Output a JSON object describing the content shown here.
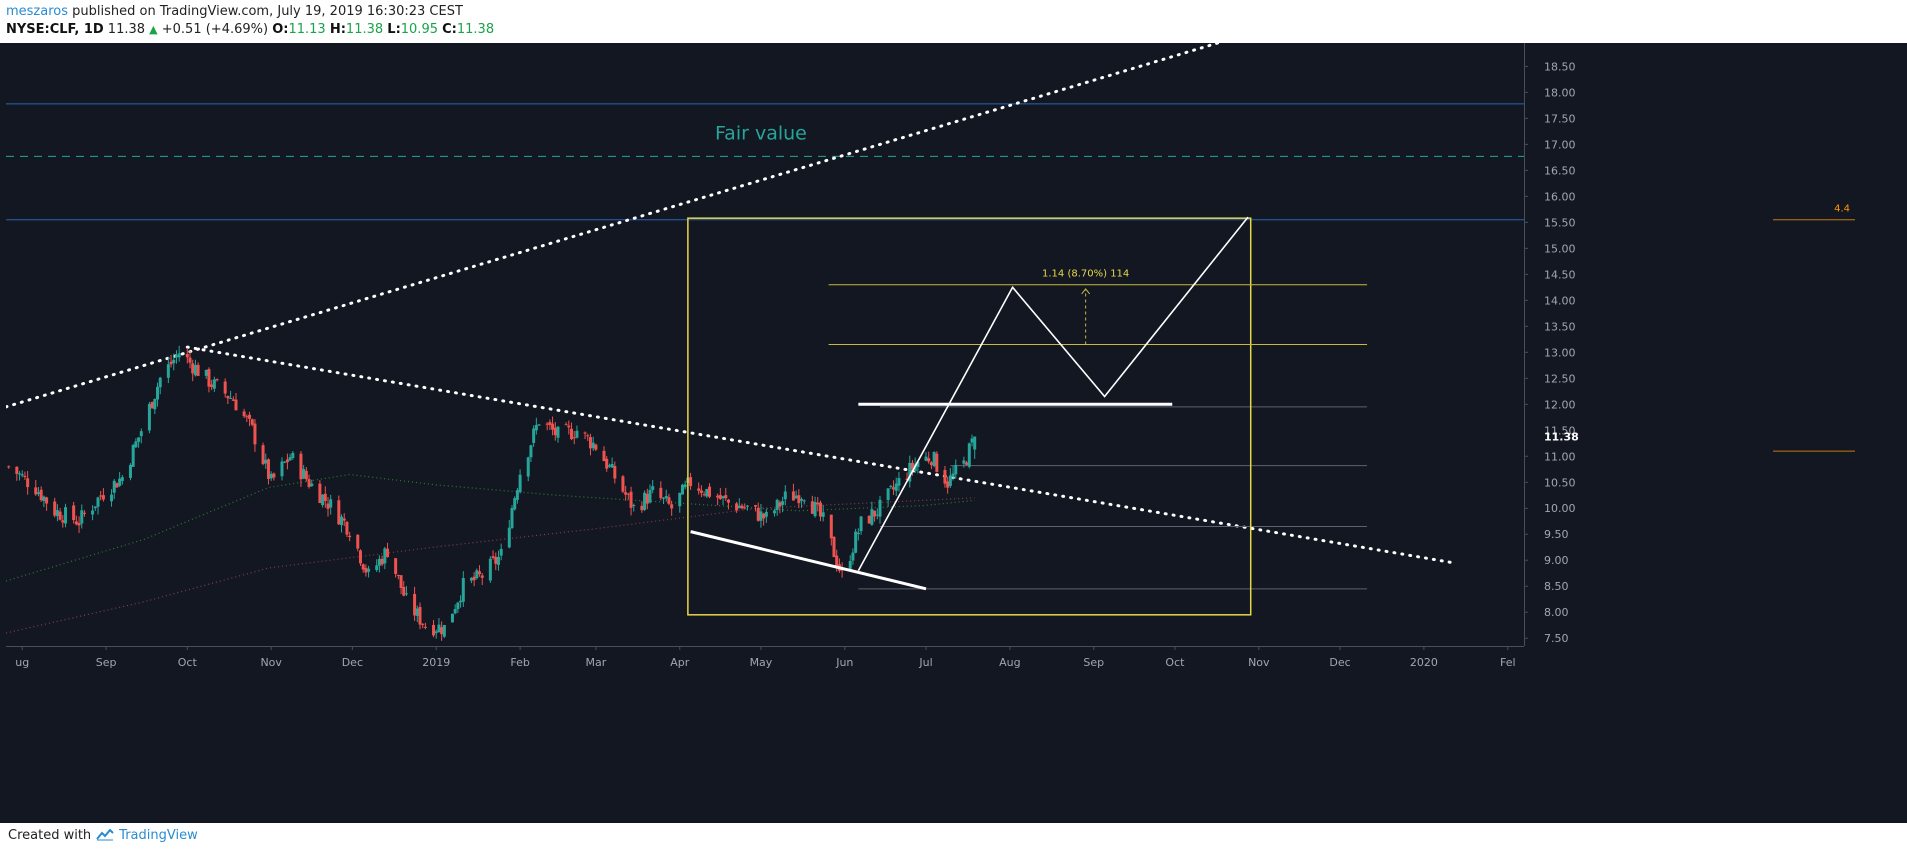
{
  "header": {
    "publisher": "meszaros",
    "published_text": "published on TradingView.com, July 19, 2019 16:30:23 CEST",
    "symbol": "NYSE:CLF, 1D",
    "last": "11.38",
    "change": "+0.51 (+4.69%)",
    "o_label": "O:",
    "o_value": "11.13",
    "h_label": "H:",
    "h_value": "11.38",
    "l_label": "L:",
    "l_value": "10.95",
    "c_label": "C:",
    "c_value": "11.38"
  },
  "footer": {
    "created": "Created with",
    "brand": "TradingView"
  },
  "colors": {
    "background": "#131722",
    "up": "#26a69a",
    "down": "#ef5350",
    "fair_value": "#26a69a",
    "box": "#e8d64a",
    "blue_line": "#2962ff",
    "accent_orange": "#ff9800"
  },
  "chart_data": {
    "type": "candlestick",
    "symbol": "NYSE:CLF",
    "interval": "1D",
    "title": "",
    "xlabel": "",
    "ylabel": "",
    "ylim": [
      7.35,
      18.95
    ],
    "x_range": [
      "2018-07-26",
      "2020-02-07"
    ],
    "x_ticks": [
      {
        "date": "2018-08-01",
        "label": "ug"
      },
      {
        "date": "2018-09-01",
        "label": "Sep"
      },
      {
        "date": "2018-10-01",
        "label": "Oct"
      },
      {
        "date": "2018-11-01",
        "label": "Nov"
      },
      {
        "date": "2018-12-01",
        "label": "Dec"
      },
      {
        "date": "2019-01-01",
        "label": "2019"
      },
      {
        "date": "2019-02-01",
        "label": "Feb"
      },
      {
        "date": "2019-03-01",
        "label": "Mar"
      },
      {
        "date": "2019-04-01",
        "label": "Apr"
      },
      {
        "date": "2019-05-01",
        "label": "May"
      },
      {
        "date": "2019-06-01",
        "label": "Jun"
      },
      {
        "date": "2019-07-01",
        "label": "Jul"
      },
      {
        "date": "2019-08-01",
        "label": "Aug"
      },
      {
        "date": "2019-09-01",
        "label": "Sep"
      },
      {
        "date": "2019-10-01",
        "label": "Oct"
      },
      {
        "date": "2019-11-01",
        "label": "Nov"
      },
      {
        "date": "2019-12-01",
        "label": "Dec"
      },
      {
        "date": "2020-01-01",
        "label": "2020"
      },
      {
        "date": "2020-02-01",
        "label": "Fel"
      }
    ],
    "y_ticks": [
      "7.50",
      "8.00",
      "8.50",
      "9.00",
      "9.50",
      "10.00",
      "10.50",
      "11.00",
      "11.50",
      "12.00",
      "12.50",
      "13.00",
      "13.50",
      "14.00",
      "14.50",
      "15.00",
      "15.50",
      "16.00",
      "16.50",
      "17.00",
      "17.50",
      "18.00",
      "18.50"
    ],
    "last_price_label": "11.38",
    "close_path": [
      {
        "date": "2018-07-27",
        "value": 10.8
      },
      {
        "date": "2018-08-06",
        "value": 10.4
      },
      {
        "date": "2018-08-13",
        "value": 9.95
      },
      {
        "date": "2018-08-22",
        "value": 9.75
      },
      {
        "date": "2018-08-31",
        "value": 10.3
      },
      {
        "date": "2018-09-07",
        "value": 10.6
      },
      {
        "date": "2018-09-14",
        "value": 11.5
      },
      {
        "date": "2018-09-21",
        "value": 12.5
      },
      {
        "date": "2018-09-28",
        "value": 13.0
      },
      {
        "date": "2018-10-03",
        "value": 12.75
      },
      {
        "date": "2018-10-10",
        "value": 12.4
      },
      {
        "date": "2018-10-18",
        "value": 12.1
      },
      {
        "date": "2018-10-25",
        "value": 11.5
      },
      {
        "date": "2018-11-01",
        "value": 10.5
      },
      {
        "date": "2018-11-08",
        "value": 11.0
      },
      {
        "date": "2018-11-15",
        "value": 10.5
      },
      {
        "date": "2018-11-23",
        "value": 10.05
      },
      {
        "date": "2018-11-30",
        "value": 9.6
      },
      {
        "date": "2018-12-07",
        "value": 8.7
      },
      {
        "date": "2018-12-14",
        "value": 9.2
      },
      {
        "date": "2018-12-21",
        "value": 8.2
      },
      {
        "date": "2018-12-28",
        "value": 7.75
      },
      {
        "date": "2019-01-04",
        "value": 7.7
      },
      {
        "date": "2019-01-11",
        "value": 8.5
      },
      {
        "date": "2019-01-18",
        "value": 8.7
      },
      {
        "date": "2019-01-25",
        "value": 9.1
      },
      {
        "date": "2019-02-01",
        "value": 10.7
      },
      {
        "date": "2019-02-08",
        "value": 11.7
      },
      {
        "date": "2019-02-15",
        "value": 11.4
      },
      {
        "date": "2019-02-22",
        "value": 11.5
      },
      {
        "date": "2019-03-01",
        "value": 11.2
      },
      {
        "date": "2019-03-08",
        "value": 10.6
      },
      {
        "date": "2019-03-15",
        "value": 10.0
      },
      {
        "date": "2019-03-22",
        "value": 10.3
      },
      {
        "date": "2019-03-29",
        "value": 10.0
      },
      {
        "date": "2019-04-05",
        "value": 10.5
      },
      {
        "date": "2019-04-12",
        "value": 10.3
      },
      {
        "date": "2019-04-19",
        "value": 10.1
      },
      {
        "date": "2019-04-26",
        "value": 10.0
      },
      {
        "date": "2019-05-03",
        "value": 9.8
      },
      {
        "date": "2019-05-10",
        "value": 10.2
      },
      {
        "date": "2019-05-17",
        "value": 10.3
      },
      {
        "date": "2019-05-24",
        "value": 9.75
      },
      {
        "date": "2019-05-31",
        "value": 8.7
      },
      {
        "date": "2019-06-07",
        "value": 9.7
      },
      {
        "date": "2019-06-14",
        "value": 10.0
      },
      {
        "date": "2019-06-21",
        "value": 10.5
      },
      {
        "date": "2019-06-28",
        "value": 10.9
      },
      {
        "date": "2019-07-03",
        "value": 11.0
      },
      {
        "date": "2019-07-09",
        "value": 10.5
      },
      {
        "date": "2019-07-15",
        "value": 10.85
      },
      {
        "date": "2019-07-19",
        "value": 11.38
      }
    ],
    "horizontal_lines": [
      {
        "name": "blue-line-upper",
        "value": 17.78,
        "style": "solid",
        "color": "#2a63b8"
      },
      {
        "name": "fair-value-line",
        "value": 16.77,
        "style": "dashed",
        "color": "#26a69a",
        "label": "Fair value"
      },
      {
        "name": "blue-line-lower",
        "value": 15.55,
        "style": "solid",
        "color": "#2a63b8"
      }
    ],
    "annotation_text": {
      "fair_value": "Fair value",
      "measure": "1.14 (8.70%) 114",
      "right_value": "4.4"
    },
    "yellow_box": {
      "x0": "2019-04-04",
      "x1": "2019-10-29",
      "y0": 7.95,
      "y1": 15.58
    },
    "yellow_levels": [
      {
        "value": 14.3,
        "x0": "2019-05-26",
        "x1": "2019-12-11"
      },
      {
        "value": 13.15,
        "x0": "2019-05-26",
        "x1": "2019-12-11"
      }
    ],
    "gray_levels": [
      {
        "value": 11.95,
        "x0": "2019-06-14",
        "x1": "2019-12-11"
      },
      {
        "value": 10.82,
        "x0": "2019-07-10",
        "x1": "2019-12-11"
      },
      {
        "value": 9.65,
        "x0": "2019-06-14",
        "x1": "2019-12-11"
      },
      {
        "value": 8.45,
        "x0": "2019-06-06",
        "x1": "2019-12-11"
      }
    ],
    "white_support": {
      "value": 12.0,
      "x0": "2019-06-06",
      "x1": "2019-09-30"
    },
    "white_trendline": [
      {
        "date": "2019-04-05",
        "value": 9.55
      },
      {
        "date": "2019-07-01",
        "value": 8.45
      }
    ],
    "dotted_trendline_up": [
      {
        "date": "2018-07-26",
        "value": 11.95
      },
      {
        "date": "2019-10-20",
        "value": 19.0
      }
    ],
    "dotted_trendline_down": [
      {
        "date": "2018-10-01",
        "value": 13.1
      },
      {
        "date": "2020-01-12",
        "value": 8.95
      }
    ],
    "projection_path": [
      {
        "date": "2019-06-06",
        "value": 8.8
      },
      {
        "date": "2019-08-02",
        "value": 14.25
      },
      {
        "date": "2019-09-05",
        "value": 12.15
      },
      {
        "date": "2019-10-28",
        "value": 15.6
      }
    ],
    "moving_averages": [
      {
        "color": "#2e7d32",
        "points": [
          {
            "date": "2018-07-26",
            "value": 8.6
          },
          {
            "date": "2018-09-15",
            "value": 9.4
          },
          {
            "date": "2018-10-31",
            "value": 10.4
          },
          {
            "date": "2018-11-30",
            "value": 10.65
          },
          {
            "date": "2019-01-01",
            "value": 10.45
          },
          {
            "date": "2019-02-15",
            "value": 10.25
          },
          {
            "date": "2019-03-31",
            "value": 10.1
          },
          {
            "date": "2019-05-15",
            "value": 9.95
          },
          {
            "date": "2019-06-30",
            "value": 10.05
          },
          {
            "date": "2019-07-19",
            "value": 10.15
          }
        ]
      },
      {
        "color": "#8e3a4a",
        "points": [
          {
            "date": "2018-07-26",
            "value": 7.6
          },
          {
            "date": "2018-09-15",
            "value": 8.2
          },
          {
            "date": "2018-10-31",
            "value": 8.85
          },
          {
            "date": "2018-12-31",
            "value": 9.25
          },
          {
            "date": "2019-02-28",
            "value": 9.6
          },
          {
            "date": "2019-04-30",
            "value": 10.0
          },
          {
            "date": "2019-06-30",
            "value": 10.15
          },
          {
            "date": "2019-07-19",
            "value": 10.2
          }
        ]
      }
    ]
  }
}
